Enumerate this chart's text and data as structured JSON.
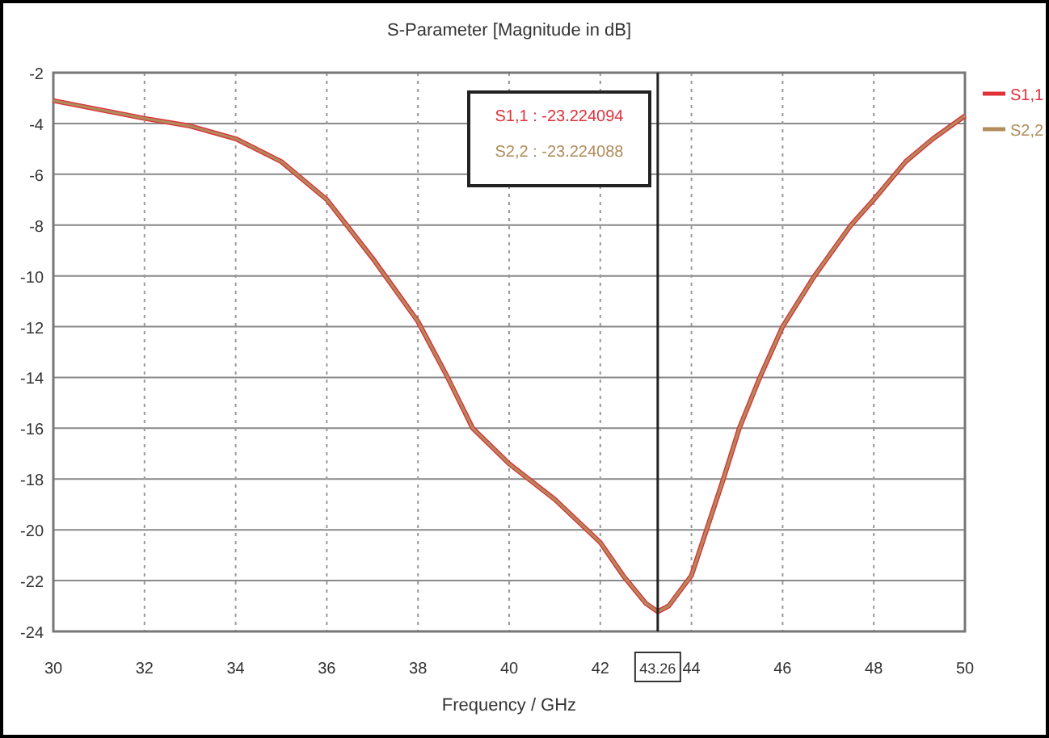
{
  "chart_data": {
    "type": "line",
    "title": "S-Parameter [Magnitude in dB]",
    "xlabel": "Frequency / GHz",
    "x": [
      30,
      31,
      32,
      33,
      34,
      35,
      36,
      37,
      38,
      38.65,
      39.2,
      40,
      40.5,
      41,
      42,
      42.5,
      43,
      43.26,
      43.5,
      44,
      44.7,
      45.05,
      45.5,
      46,
      46.7,
      47.5,
      48,
      48.7,
      49.3,
      50
    ],
    "series": [
      {
        "name": "S1,1",
        "color": "#e0303a",
        "values": [
          -3.1,
          -3.45,
          -3.8,
          -4.1,
          -4.6,
          -5.5,
          -7.0,
          -9.3,
          -11.8,
          -14,
          -16,
          -17.4,
          -18.1,
          -18.8,
          -20.5,
          -21.8,
          -22.9,
          -23.22,
          -23.0,
          -21.8,
          -18,
          -16,
          -14,
          -12,
          -10,
          -8,
          -7.0,
          -5.5,
          -4.6,
          -3.7
        ]
      },
      {
        "name": "S2,2",
        "color": "#b08c5a",
        "values": [
          -3.1,
          -3.45,
          -3.8,
          -4.1,
          -4.6,
          -5.5,
          -7.0,
          -9.3,
          -11.8,
          -14,
          -16,
          -17.4,
          -18.1,
          -18.8,
          -20.5,
          -21.8,
          -22.9,
          -23.22,
          -23.0,
          -21.8,
          -18,
          -16,
          -14,
          -12,
          -10,
          -8,
          -7.0,
          -5.5,
          -4.6,
          -3.7
        ]
      }
    ],
    "xlim": [
      30,
      50
    ],
    "xticks": [
      30,
      32,
      34,
      36,
      38,
      40,
      42,
      44,
      46,
      48,
      50
    ],
    "ylim": [
      -24,
      -2
    ],
    "yticks": [
      -2,
      -4,
      -6,
      -8,
      -10,
      -12,
      -14,
      -16,
      -18,
      -20,
      -22,
      -24
    ],
    "ref_lines": [
      {
        "axis": "x",
        "value": 43.26,
        "label": "43.26",
        "color": "#222222"
      }
    ],
    "annotations": [
      "S1,1 : -23.224094",
      "S2,2 : -23.224088"
    ],
    "grid": true,
    "legend": "right",
    "marker": "none",
    "line_style": "solid"
  }
}
